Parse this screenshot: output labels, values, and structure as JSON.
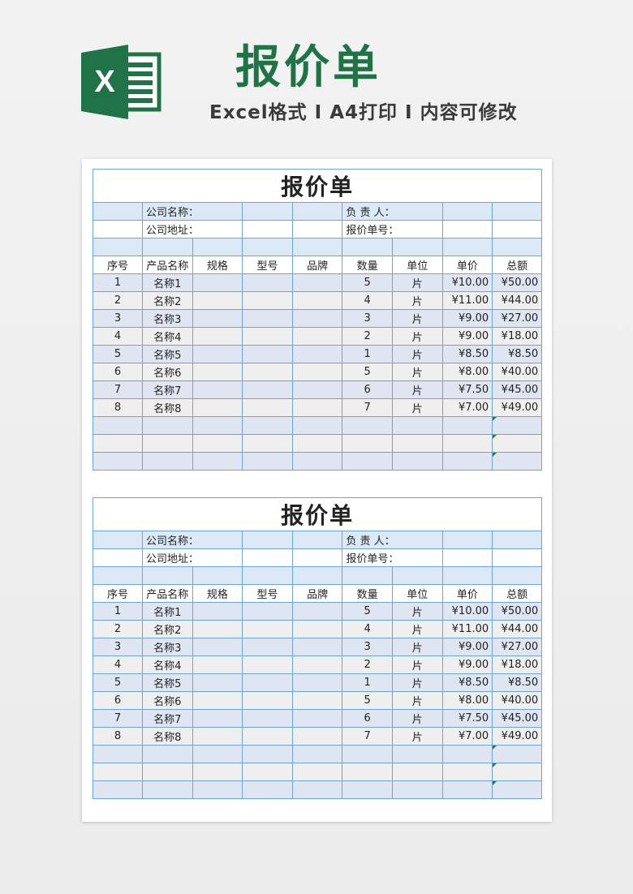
{
  "header": {
    "title": "报价单",
    "subtitle": "Excel格式 I A4打印 I 内容可修改",
    "logo_letter": "X",
    "brand_color": "#1f7346"
  },
  "sheets": [
    {
      "title": "报价单",
      "company_name_label": "公司名称：",
      "company_address_label": "公司地址：",
      "manager_label": "负 责 人：",
      "quote_no_label": "报价单号：",
      "columns": [
        "序号",
        "产品名称",
        "规格",
        "型号",
        "品牌",
        "数量",
        "单位",
        "单价",
        "总额"
      ],
      "rows": [
        [
          "1",
          "名称1",
          "",
          "",
          "",
          "5",
          "片",
          "¥10.00",
          "¥50.00"
        ],
        [
          "2",
          "名称2",
          "",
          "",
          "",
          "4",
          "片",
          "¥11.00",
          "¥44.00"
        ],
        [
          "3",
          "名称3",
          "",
          "",
          "",
          "3",
          "片",
          "¥9.00",
          "¥27.00"
        ],
        [
          "4",
          "名称4",
          "",
          "",
          "",
          "2",
          "片",
          "¥9.00",
          "¥18.00"
        ],
        [
          "5",
          "名称5",
          "",
          "",
          "",
          "1",
          "片",
          "¥8.50",
          "¥8.50"
        ],
        [
          "6",
          "名称6",
          "",
          "",
          "",
          "5",
          "片",
          "¥8.00",
          "¥40.00"
        ],
        [
          "7",
          "名称7",
          "",
          "",
          "",
          "6",
          "片",
          "¥7.50",
          "¥45.00"
        ],
        [
          "8",
          "名称8",
          "",
          "",
          "",
          "7",
          "片",
          "¥7.00",
          "¥49.00"
        ]
      ]
    },
    {
      "title": "报价单",
      "company_name_label": "公司名称：",
      "company_address_label": "公司地址：",
      "manager_label": "负 责 人：",
      "quote_no_label": "报价单号：",
      "columns": [
        "序号",
        "产品名称",
        "规格",
        "型号",
        "品牌",
        "数量",
        "单位",
        "单价",
        "总额"
      ],
      "rows": [
        [
          "1",
          "名称1",
          "",
          "",
          "",
          "5",
          "片",
          "¥10.00",
          "¥50.00"
        ],
        [
          "2",
          "名称2",
          "",
          "",
          "",
          "4",
          "片",
          "¥11.00",
          "¥44.00"
        ],
        [
          "3",
          "名称3",
          "",
          "",
          "",
          "3",
          "片",
          "¥9.00",
          "¥27.00"
        ],
        [
          "4",
          "名称4",
          "",
          "",
          "",
          "2",
          "片",
          "¥9.00",
          "¥18.00"
        ],
        [
          "5",
          "名称5",
          "",
          "",
          "",
          "1",
          "片",
          "¥8.50",
          "¥8.50"
        ],
        [
          "6",
          "名称6",
          "",
          "",
          "",
          "5",
          "片",
          "¥8.00",
          "¥40.00"
        ],
        [
          "7",
          "名称7",
          "",
          "",
          "",
          "6",
          "片",
          "¥7.50",
          "¥45.00"
        ],
        [
          "8",
          "名称8",
          "",
          "",
          "",
          "7",
          "片",
          "¥7.00",
          "¥49.00"
        ]
      ]
    }
  ]
}
